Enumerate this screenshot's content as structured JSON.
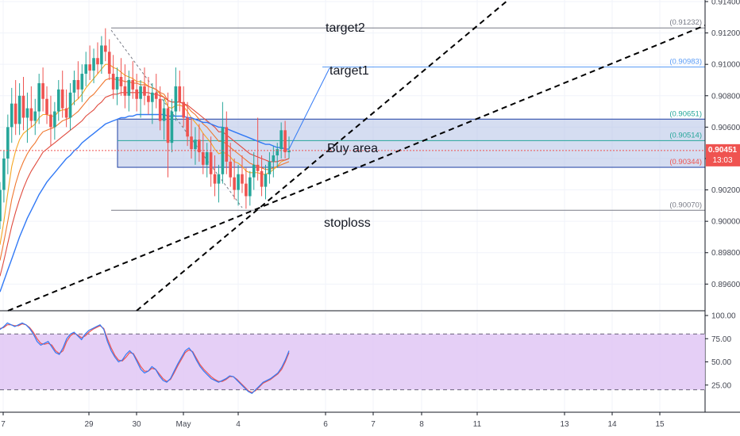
{
  "chart_data": [
    {
      "type": "candlestick",
      "ylim": [
        0.8943,
        0.9141
      ],
      "grid": true,
      "price_ticks": [
        "0.91400",
        "0.91200",
        "0.91000",
        "0.90800",
        "0.90600",
        "0.90400",
        "0.90200",
        "0.90000",
        "0.89800",
        "0.89600"
      ],
      "time_ticks": [
        "7",
        "29",
        "30",
        "May",
        "4",
        "6",
        "7",
        "8",
        "11",
        "13",
        "14",
        "15"
      ],
      "last_price": {
        "value": "0.90451",
        "countdown": "13:03"
      },
      "levels": [
        {
          "name": "target2",
          "value": 0.91232,
          "label": "(0.91232)",
          "color": "#787b86"
        },
        {
          "name": "target1",
          "value": 0.90983,
          "label": "(0.90983)",
          "color": "#5b9cf6"
        },
        {
          "name": "buy-area-top",
          "value": 0.90651,
          "label": "(0.90651)",
          "color": "#26a69a"
        },
        {
          "name": "buy-area-mid",
          "value": 0.90514,
          "label": "(0.90514)",
          "color": "#26a69a"
        },
        {
          "name": "buy-area-bottom",
          "value": 0.90344,
          "label": "(0.90344)",
          "color": "#ef5350"
        },
        {
          "name": "stoploss",
          "value": 0.9007,
          "label": "(0.90070)",
          "color": "#787b86"
        }
      ],
      "annotations": {
        "target2": "target2",
        "target1": "target1",
        "buy_area": "Buy area",
        "stoploss": "stoploss"
      },
      "colors": {
        "up": "#26a69a",
        "down": "#ef5350",
        "buy_box_fill": "#b2c1e6",
        "buy_box_border": "#1e3fa3",
        "price_line": "#ef5350",
        "ma_fast": "#f5a623",
        "ma_mid": "#f0772f",
        "ma_slow": "#e04b3e",
        "ma_long": "#3179f5"
      },
      "candles": [
        [
          0.9,
          0.9025,
          0.8995,
          0.902
        ],
        [
          0.902,
          0.9045,
          0.9012,
          0.904
        ],
        [
          0.904,
          0.9068,
          0.903,
          0.906
        ],
        [
          0.906,
          0.9085,
          0.905,
          0.9075
        ],
        [
          0.9075,
          0.909,
          0.9055,
          0.9062
        ],
        [
          0.9062,
          0.9088,
          0.9055,
          0.908
        ],
        [
          0.908,
          0.9092,
          0.9058,
          0.9066
        ],
        [
          0.9066,
          0.9082,
          0.905,
          0.9072
        ],
        [
          0.9072,
          0.9086,
          0.906,
          0.9064
        ],
        [
          0.9064,
          0.9078,
          0.9055,
          0.907
        ],
        [
          0.907,
          0.9094,
          0.9062,
          0.9088
        ],
        [
          0.9088,
          0.9098,
          0.907,
          0.9078
        ],
        [
          0.9078,
          0.9086,
          0.9062,
          0.9068
        ],
        [
          0.9068,
          0.908,
          0.9048,
          0.906
        ],
        [
          0.906,
          0.9076,
          0.9052,
          0.907
        ],
        [
          0.907,
          0.909,
          0.9064,
          0.9084
        ],
        [
          0.9084,
          0.9096,
          0.9066,
          0.9072
        ],
        [
          0.9072,
          0.9084,
          0.906,
          0.9066
        ],
        [
          0.9066,
          0.9088,
          0.9058,
          0.9082
        ],
        [
          0.9082,
          0.9096,
          0.9074,
          0.909
        ],
        [
          0.909,
          0.9102,
          0.9078,
          0.9084
        ],
        [
          0.9084,
          0.91,
          0.9076,
          0.9094
        ],
        [
          0.9094,
          0.9108,
          0.9086,
          0.91
        ],
        [
          0.91,
          0.9112,
          0.909,
          0.9096
        ],
        [
          0.9096,
          0.911,
          0.9088,
          0.9104
        ],
        [
          0.9104,
          0.9114,
          0.9094,
          0.91
        ],
        [
          0.91,
          0.9118,
          0.9094,
          0.9112
        ],
        [
          0.9112,
          0.9123,
          0.9102,
          0.9108
        ],
        [
          0.9108,
          0.9116,
          0.909,
          0.9094
        ],
        [
          0.9094,
          0.9106,
          0.9078,
          0.9084
        ],
        [
          0.9084,
          0.9098,
          0.9074,
          0.9092
        ],
        [
          0.9092,
          0.9104,
          0.908,
          0.9086
        ],
        [
          0.9086,
          0.91,
          0.9072,
          0.908
        ],
        [
          0.908,
          0.9096,
          0.907,
          0.909
        ],
        [
          0.909,
          0.9102,
          0.9078,
          0.9084
        ],
        [
          0.9084,
          0.9094,
          0.907,
          0.9078
        ],
        [
          0.9078,
          0.909,
          0.9066,
          0.9086
        ],
        [
          0.9086,
          0.9098,
          0.9074,
          0.908
        ],
        [
          0.908,
          0.9092,
          0.9068,
          0.9076
        ],
        [
          0.9076,
          0.9088,
          0.9062,
          0.9082
        ],
        [
          0.9082,
          0.9094,
          0.9072,
          0.9078
        ],
        [
          0.9078,
          0.9086,
          0.9058,
          0.9064
        ],
        [
          0.9064,
          0.9078,
          0.9052,
          0.9072
        ],
        [
          0.9072,
          0.9082,
          0.9028,
          0.905
        ],
        [
          0.905,
          0.9078,
          0.9044,
          0.907
        ],
        [
          0.907,
          0.9098,
          0.9064,
          0.9086
        ],
        [
          0.9086,
          0.9096,
          0.907,
          0.9076
        ],
        [
          0.9076,
          0.9086,
          0.906,
          0.9066
        ],
        [
          0.9066,
          0.9076,
          0.9048,
          0.9054
        ],
        [
          0.9054,
          0.9066,
          0.904,
          0.9046
        ],
        [
          0.9046,
          0.906,
          0.9036,
          0.9052
        ],
        [
          0.9052,
          0.9062,
          0.9038,
          0.9044
        ],
        [
          0.9044,
          0.9056,
          0.903,
          0.9036
        ],
        [
          0.9036,
          0.905,
          0.9028,
          0.9044
        ],
        [
          0.9044,
          0.9054,
          0.9022,
          0.903
        ],
        [
          0.903,
          0.9042,
          0.9016,
          0.9024
        ],
        [
          0.9024,
          0.9036,
          0.9012,
          0.903
        ],
        [
          0.903,
          0.9076,
          0.9024,
          0.906
        ],
        [
          0.906,
          0.907,
          0.903,
          0.9038
        ],
        [
          0.9038,
          0.905,
          0.9022,
          0.9028
        ],
        [
          0.9028,
          0.904,
          0.9014,
          0.902
        ],
        [
          0.902,
          0.9036,
          0.901,
          0.903
        ],
        [
          0.903,
          0.9042,
          0.9018,
          0.9024
        ],
        [
          0.9024,
          0.9034,
          0.9008,
          0.9016
        ],
        [
          0.9016,
          0.9032,
          0.901,
          0.9028
        ],
        [
          0.9028,
          0.9044,
          0.902,
          0.9036
        ],
        [
          0.9036,
          0.9066,
          0.9026,
          0.9032
        ],
        [
          0.9032,
          0.9042,
          0.9016,
          0.9022
        ],
        [
          0.9022,
          0.9036,
          0.9014,
          0.903
        ],
        [
          0.903,
          0.9044,
          0.9024,
          0.9038
        ],
        [
          0.9038,
          0.9048,
          0.9028,
          0.9042
        ],
        [
          0.9042,
          0.905,
          0.9034,
          0.9046
        ],
        [
          0.9046,
          0.9063,
          0.904,
          0.9058
        ],
        [
          0.9058,
          0.9064,
          0.904,
          0.9044
        ],
        [
          0.9044,
          0.9054,
          0.904,
          0.9045
        ]
      ],
      "moving_averages": [
        {
          "name": "ma-fast",
          "color_key": "ma_fast",
          "values": [
            0.8985,
            0.9,
            0.9018,
            0.9035,
            0.9045,
            0.9052,
            0.9056,
            0.9058,
            0.906,
            0.9062,
            0.9066,
            0.9068,
            0.9068,
            0.9067,
            0.9067,
            0.907,
            0.9071,
            0.9071,
            0.9073,
            0.9076,
            0.9078,
            0.9081,
            0.9085,
            0.9088,
            0.9091,
            0.9094,
            0.9097,
            0.91,
            0.91,
            0.9098,
            0.9097,
            0.9095,
            0.9093,
            0.9092,
            0.9091,
            0.9089,
            0.9089,
            0.9088,
            0.9086,
            0.9085,
            0.9084,
            0.9081,
            0.9079,
            0.9073,
            0.9072,
            0.9074,
            0.9074,
            0.9073,
            0.907,
            0.9066,
            0.9063,
            0.906,
            0.9056,
            0.9053,
            0.905,
            0.9046,
            0.9043,
            0.9044,
            0.9043,
            0.9041,
            0.9038,
            0.9037,
            0.9035,
            0.9032,
            0.9031,
            0.9031,
            0.9031,
            0.903,
            0.903,
            0.9031,
            0.9033,
            0.9035,
            0.9038,
            0.9039,
            0.904
          ]
        },
        {
          "name": "ma-mid",
          "color_key": "ma_mid",
          "values": [
            0.8975,
            0.8987,
            0.9,
            0.9014,
            0.9024,
            0.9032,
            0.9038,
            0.9043,
            0.9047,
            0.905,
            0.9054,
            0.9057,
            0.9058,
            0.9059,
            0.906,
            0.9062,
            0.9064,
            0.9065,
            0.9066,
            0.9068,
            0.907,
            0.9073,
            0.9076,
            0.9079,
            0.9081,
            0.9084,
            0.9087,
            0.909,
            0.9091,
            0.9091,
            0.909,
            0.909,
            0.9089,
            0.9089,
            0.9088,
            0.9088,
            0.9087,
            0.9087,
            0.9086,
            0.9085,
            0.9084,
            0.9082,
            0.9081,
            0.9077,
            0.9076,
            0.9076,
            0.9076,
            0.9075,
            0.9073,
            0.907,
            0.9068,
            0.9065,
            0.9062,
            0.906,
            0.9057,
            0.9054,
            0.9051,
            0.9051,
            0.9049,
            0.9047,
            0.9045,
            0.9043,
            0.9041,
            0.9039,
            0.9037,
            0.9036,
            0.9035,
            0.9034,
            0.9033,
            0.9033,
            0.9034,
            0.9035,
            0.9036,
            0.9037,
            0.9038
          ]
        },
        {
          "name": "ma-slow",
          "color_key": "ma_slow",
          "values": [
            0.8965,
            0.8975,
            0.8986,
            0.8997,
            0.9006,
            0.9014,
            0.9021,
            0.9027,
            0.9032,
            0.9036,
            0.904,
            0.9044,
            0.9046,
            0.9048,
            0.905,
            0.9052,
            0.9054,
            0.9056,
            0.9058,
            0.906,
            0.9062,
            0.9064,
            0.9067,
            0.9069,
            0.9071,
            0.9074,
            0.9076,
            0.9079,
            0.908,
            0.9081,
            0.9081,
            0.9082,
            0.9082,
            0.9082,
            0.9082,
            0.9082,
            0.9082,
            0.9082,
            0.9082,
            0.9081,
            0.9081,
            0.908,
            0.9079,
            0.9077,
            0.9076,
            0.9076,
            0.9076,
            0.9075,
            0.9074,
            0.9072,
            0.907,
            0.9068,
            0.9066,
            0.9064,
            0.9062,
            0.906,
            0.9057,
            0.9057,
            0.9055,
            0.9053,
            0.9051,
            0.9049,
            0.9047,
            0.9045,
            0.9043,
            0.9042,
            0.9041,
            0.904,
            0.9039,
            0.9038,
            0.9038,
            0.9038,
            0.9039,
            0.9039,
            0.904
          ]
        },
        {
          "name": "ma-long",
          "color_key": "ma_long",
          "values": [
            0.8955,
            0.8962,
            0.8969,
            0.8976,
            0.8983,
            0.899,
            0.8996,
            0.9002,
            0.9007,
            0.9012,
            0.9017,
            0.9021,
            0.9025,
            0.9028,
            0.9031,
            0.9034,
            0.9037,
            0.904,
            0.9042,
            0.9045,
            0.9047,
            0.905,
            0.9052,
            0.9054,
            0.9056,
            0.9058,
            0.906,
            0.9062,
            0.9063,
            0.9064,
            0.9065,
            0.9066,
            0.9066,
            0.9067,
            0.9067,
            0.9068,
            0.9068,
            0.9068,
            0.9068,
            0.9068,
            0.9068,
            0.9068,
            0.9068,
            0.9067,
            0.9067,
            0.9067,
            0.9067,
            0.9067,
            0.9066,
            0.9066,
            0.9065,
            0.9064,
            0.9063,
            0.9063,
            0.9062,
            0.9061,
            0.906,
            0.906,
            0.9059,
            0.9058,
            0.9057,
            0.9056,
            0.9055,
            0.9054,
            0.9053,
            0.9052,
            0.9051,
            0.905,
            0.9049,
            0.9049,
            0.9048,
            0.9047,
            0.9047,
            0.9046,
            0.9046
          ]
        }
      ]
    },
    {
      "type": "line",
      "name": "stochastic-oscillator",
      "ylim": [
        0,
        100
      ],
      "ticks": [
        "100.00",
        "75.00",
        "50.00",
        "25.00"
      ],
      "bands": [
        20,
        80
      ],
      "colors": {
        "k": "#3179f5",
        "d": "#ef5350",
        "band_fill": "#e1c7f5"
      },
      "k_values": [
        85,
        88,
        92,
        90,
        88,
        90,
        92,
        90,
        86,
        80,
        72,
        68,
        70,
        72,
        66,
        60,
        58,
        65,
        75,
        80,
        82,
        78,
        74,
        80,
        84,
        86,
        88,
        90,
        85,
        72,
        62,
        55,
        50,
        52,
        58,
        62,
        58,
        50,
        42,
        38,
        40,
        45,
        42,
        35,
        30,
        28,
        32,
        40,
        48,
        55,
        62,
        65,
        60,
        52,
        45,
        40,
        36,
        32,
        30,
        28,
        30,
        32,
        35,
        34,
        30,
        26,
        22,
        18,
        16,
        20,
        24,
        28,
        30,
        32,
        35,
        38,
        44,
        52,
        62
      ],
      "d_values": [
        86,
        87,
        90,
        90,
        89,
        89,
        91,
        90,
        87,
        82,
        75,
        70,
        69,
        70,
        68,
        62,
        59,
        62,
        72,
        78,
        81,
        79,
        76,
        78,
        82,
        85,
        87,
        89,
        86,
        75,
        65,
        57,
        52,
        51,
        55,
        60,
        59,
        52,
        45,
        40,
        40,
        43,
        42,
        37,
        32,
        29,
        31,
        38,
        46,
        53,
        60,
        63,
        61,
        54,
        47,
        42,
        38,
        34,
        31,
        29,
        29,
        31,
        34,
        34,
        31,
        27,
        23,
        19,
        17,
        19,
        23,
        27,
        29,
        31,
        34,
        37,
        42,
        50,
        60
      ]
    }
  ]
}
